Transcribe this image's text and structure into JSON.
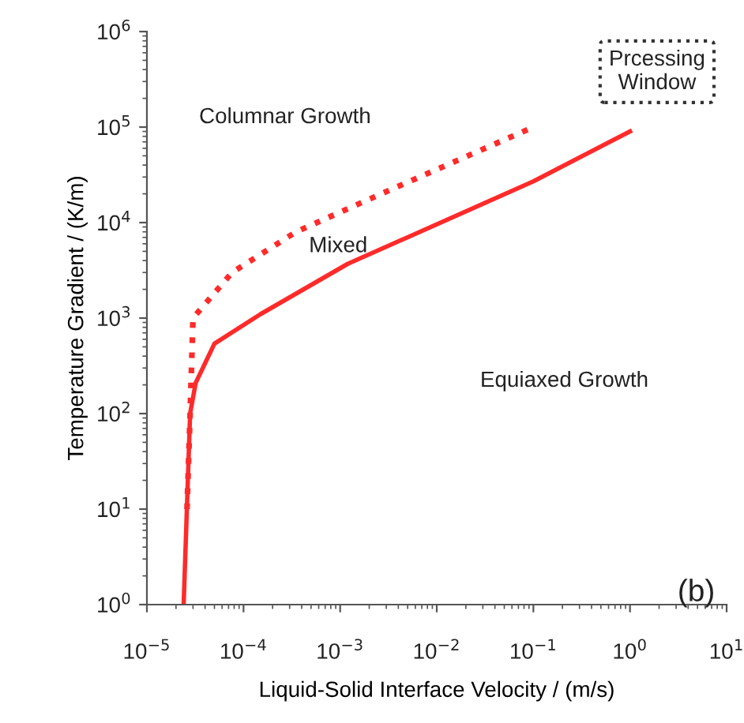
{
  "chart_data": {
    "type": "line",
    "xlabel": "Liquid-Solid Interface Velocity / (m/s)",
    "ylabel": "Temperature Gradient / (K/m)",
    "log": "xy",
    "grid": false,
    "xlim": [
      1e-05,
      10
    ],
    "ylim": [
      1,
      1000000.0
    ],
    "xticks": [
      {
        "value": 1e-05,
        "label": "10$^{−5}$"
      },
      {
        "value": 0.0001,
        "label": "10$^{−4}$"
      },
      {
        "value": 0.001,
        "label": "10$^{−3}$"
      },
      {
        "value": 0.01,
        "label": "10$^{−2}$"
      },
      {
        "value": 0.1,
        "label": "10$^{−1}$"
      },
      {
        "value": 1,
        "label": "10$^{0}$"
      },
      {
        "value": 10,
        "label": "10$^{1}$"
      }
    ],
    "yticks": [
      {
        "value": 1,
        "label": "10$^{0}$"
      },
      {
        "value": 10,
        "label": "10$^{1}$"
      },
      {
        "value": 100,
        "label": "10$^{2}$"
      },
      {
        "value": 1000,
        "label": "10$^{3}$"
      },
      {
        "value": 10000,
        "label": "10$^{4}$"
      },
      {
        "value": 100000,
        "label": "10$^{5}$"
      },
      {
        "value": 1000000,
        "label": "10$^{6}$"
      }
    ],
    "series": [
      {
        "color": "#ff2a2a",
        "line_style": "solid",
        "x": [
          2.4e-05,
          2.8e-05,
          3.2e-05,
          5e-05,
          0.00015,
          0.0012,
          0.1,
          1
        ],
        "values": [
          1,
          100,
          210,
          540,
          1100,
          3700,
          27000,
          90000
        ]
      },
      {
        "color": "#ff2a2a",
        "line_style": "dotted",
        "x": [
          2.6e-05,
          2.8e-05,
          3e-05,
          7.6e-05,
          0.00035,
          0.0033,
          0.1
        ],
        "values": [
          10,
          100,
          1000,
          3000,
          8000,
          22000,
          100000
        ]
      }
    ],
    "annotations": [
      "Columnar Growth",
      "Mixed",
      "Equiaxed Growth",
      "Prcessing Window",
      "(b)"
    ]
  }
}
